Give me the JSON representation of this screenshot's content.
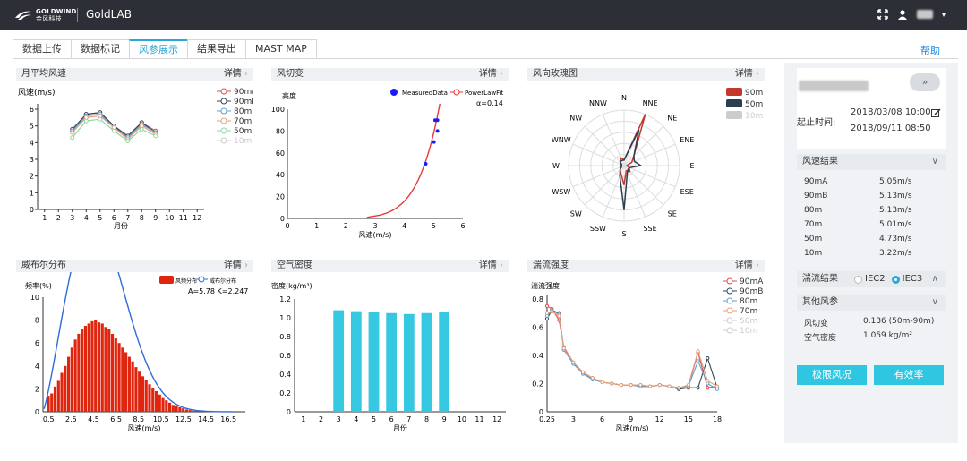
{
  "app": {
    "logo_text_en": "GOLDWIND",
    "logo_text_cn": "金风科技",
    "title": "GoldLAB"
  },
  "tabs": [
    "数据上传",
    "数据标记",
    "风参展示",
    "结果导出",
    "MAST MAP"
  ],
  "help": "帮助",
  "detail_label": "详情",
  "panels": {
    "monthly": {
      "title": "月平均风速",
      "ylabel": "风速(m/s)",
      "xlabel": "月份"
    },
    "shear": {
      "title": "风切变",
      "ylabel": "高度",
      "xlabel": "风速(m/s)",
      "legend_measured": "MeasuredData",
      "legend_fit": "PowerLawFit",
      "alpha": "α=0.14"
    },
    "rose": {
      "title": "风向玫瑰图"
    },
    "weibull": {
      "title": "威布尔分布",
      "ylabel": "频率(%)",
      "xlabel": "风速(m/s)",
      "legend_bar": "风频分布",
      "legend_line": "威布尔分布",
      "params": "A=5.78 K=2.247"
    },
    "density": {
      "title": "空气密度",
      "ylabel": "密度(kg/m³)",
      "xlabel": "月份"
    },
    "turbulence": {
      "title": "湍流强度",
      "ylabel": "湍流强度",
      "xlabel": "风速(m/s)"
    }
  },
  "chart_data": [
    {
      "type": "line",
      "title": "月平均风速",
      "ylabel": "风速(m/s)",
      "xlabel": "月份",
      "x": [
        1,
        2,
        3,
        4,
        5,
        6,
        7,
        8,
        9,
        10,
        11,
        12
      ],
      "ylim": [
        0,
        6
      ],
      "series": [
        {
          "name": "90mA",
          "color": "#d9534f",
          "x": [
            3,
            4,
            5,
            6,
            7,
            8,
            9
          ],
          "values": [
            4.7,
            5.7,
            5.8,
            5.0,
            4.3,
            5.2,
            4.7
          ]
        },
        {
          "name": "90mB",
          "color": "#34495e",
          "x": [
            3,
            4,
            5,
            6,
            7,
            8,
            9
          ],
          "values": [
            4.8,
            5.7,
            5.8,
            5.0,
            4.4,
            5.2,
            4.6
          ]
        },
        {
          "name": "80m",
          "color": "#5ba4cf",
          "x": [
            3,
            4,
            5,
            6,
            7,
            8,
            9
          ],
          "values": [
            4.7,
            5.6,
            5.7,
            4.9,
            4.3,
            5.1,
            4.6
          ]
        },
        {
          "name": "70m",
          "color": "#e8a07a",
          "x": [
            3,
            4,
            5,
            6,
            7,
            8,
            9
          ],
          "values": [
            4.6,
            5.5,
            5.6,
            4.9,
            4.2,
            5.0,
            4.5
          ]
        },
        {
          "name": "50m",
          "color": "#8ed6a8",
          "x": [
            3,
            4,
            5,
            6,
            7,
            8,
            9
          ],
          "values": [
            4.3,
            5.3,
            5.4,
            4.7,
            4.1,
            4.8,
            4.4
          ]
        },
        {
          "name": "10m",
          "color": "#cccccc",
          "x": [],
          "values": []
        }
      ]
    },
    {
      "type": "scatter",
      "title": "风切变",
      "xlabel": "风速(m/s)",
      "ylabel": "高度",
      "xlim": [
        0,
        6
      ],
      "ylim": [
        0,
        100
      ],
      "measured": [
        [
          4.73,
          50
        ],
        [
          5.01,
          70
        ],
        [
          5.13,
          80
        ],
        [
          5.13,
          90
        ],
        [
          5.05,
          90
        ]
      ],
      "fit_alpha": 0.14
    },
    {
      "type": "radar",
      "title": "风向玫瑰图",
      "directions": [
        "N",
        "NNE",
        "NE",
        "ENE",
        "E",
        "ESE",
        "SE",
        "SSE",
        "S",
        "SSW",
        "SW",
        "WSW",
        "W",
        "WNW",
        "NW",
        "NNW"
      ],
      "series": [
        {
          "name": "90m",
          "color": "#c0392b",
          "values": [
            2,
            20,
            5,
            3,
            1,
            2,
            3,
            2,
            7,
            3,
            2,
            1,
            1,
            1,
            2,
            3
          ]
        },
        {
          "name": "50m",
          "color": "#2c3e50",
          "values": [
            2,
            14,
            5,
            4,
            6,
            2,
            2,
            3,
            16,
            4,
            2,
            1,
            1,
            1,
            2,
            2
          ]
        },
        {
          "name": "10m",
          "color": "#cccccc",
          "values": []
        }
      ]
    },
    {
      "type": "bar",
      "title": "威布尔分布",
      "xlabel": "风速(m/s)",
      "ylabel": "频率(%)",
      "ylim": [
        0,
        10
      ],
      "x_ticks": [
        "0.5",
        "2.5",
        "4.5",
        "6.5",
        "8.5",
        "10.5",
        "12.5",
        "14.5",
        "16.5"
      ],
      "bin_width": 0.3,
      "bin_start": 0.5,
      "values": [
        1.4,
        1.6,
        2.2,
        2.7,
        3.4,
        4.0,
        4.8,
        5.6,
        6.3,
        6.8,
        7.2,
        7.5,
        7.7,
        7.9,
        8.0,
        7.8,
        7.7,
        7.4,
        7.2,
        6.8,
        6.4,
        6.0,
        5.6,
        5.2,
        4.8,
        4.4,
        3.9,
        3.5,
        3.1,
        2.8,
        2.4,
        2.1,
        1.8,
        1.5,
        1.2,
        1.0,
        0.8,
        0.6,
        0.5,
        0.4,
        0.3,
        0.2,
        0.15,
        0.1,
        0.08,
        0.05,
        0.03,
        0.02
      ],
      "weibull": {
        "A": 5.78,
        "K": 2.247
      }
    },
    {
      "type": "bar",
      "title": "空气密度",
      "xlabel": "月份",
      "ylabel": "密度(kg/m³)",
      "ylim": [
        0,
        1.2
      ],
      "categories": [
        "1",
        "2",
        "3",
        "4",
        "5",
        "6",
        "7",
        "8",
        "9",
        "10",
        "11",
        "12"
      ],
      "values": [
        null,
        null,
        1.08,
        1.07,
        1.06,
        1.05,
        1.04,
        1.05,
        1.06,
        null,
        null,
        null
      ],
      "color": "#36c8e0"
    },
    {
      "type": "line",
      "title": "湍流强度",
      "xlabel": "风速(m/s)",
      "ylabel": "湍流强度",
      "ylim": [
        0,
        0.8
      ],
      "xlim": [
        0,
        18
      ],
      "x_ticks": [
        "0.25",
        "3",
        "6",
        "9",
        "12",
        "15",
        "18"
      ],
      "series": [
        {
          "name": "90mA",
          "color": "#d9534f",
          "x": [
            0.25,
            0.75,
            1.5,
            2,
            3,
            4,
            5,
            6,
            7,
            8,
            9,
            10,
            11,
            12,
            13,
            14,
            15,
            16,
            17,
            18
          ],
          "values": [
            0.75,
            0.73,
            0.65,
            0.46,
            0.35,
            0.28,
            0.24,
            0.21,
            0.2,
            0.19,
            0.19,
            0.19,
            0.18,
            0.19,
            0.18,
            0.17,
            0.18,
            0.42,
            0.17,
            0.18
          ]
        },
        {
          "name": "90mB",
          "color": "#34495e",
          "x": [
            0.25,
            0.75,
            1.5,
            2,
            3,
            4,
            5,
            6,
            7,
            8,
            9,
            10,
            11,
            12,
            13,
            14,
            15,
            16,
            17,
            18
          ],
          "values": [
            0.66,
            0.72,
            0.7,
            0.44,
            0.34,
            0.27,
            0.23,
            0.21,
            0.2,
            0.19,
            0.19,
            0.18,
            0.18,
            0.19,
            0.18,
            0.16,
            0.17,
            0.17,
            0.38,
            0.17
          ]
        },
        {
          "name": "80m",
          "color": "#5ba4cf",
          "x": [
            0.25,
            0.75,
            1.5,
            2,
            3,
            4,
            5,
            6,
            7,
            8,
            9,
            10,
            11,
            12,
            13,
            14,
            15,
            16,
            17,
            18
          ],
          "values": [
            0.68,
            0.72,
            0.69,
            0.44,
            0.34,
            0.27,
            0.23,
            0.21,
            0.2,
            0.19,
            0.19,
            0.18,
            0.18,
            0.19,
            0.18,
            0.17,
            0.18,
            0.36,
            0.2,
            0.16
          ]
        },
        {
          "name": "70m",
          "color": "#e8a07a",
          "x": [
            0.25,
            0.75,
            1.5,
            2,
            3,
            4,
            5,
            6,
            7,
            8,
            9,
            10,
            11,
            12,
            13,
            14,
            15,
            16,
            17,
            18
          ],
          "values": [
            0.7,
            0.71,
            0.68,
            0.45,
            0.35,
            0.28,
            0.24,
            0.21,
            0.2,
            0.19,
            0.19,
            0.19,
            0.18,
            0.19,
            0.18,
            0.17,
            0.19,
            0.43,
            0.22,
            0.18
          ]
        },
        {
          "name": "50m",
          "color": "#cccccc",
          "x": [],
          "values": []
        },
        {
          "name": "10m",
          "color": "#cccccc",
          "x": [],
          "values": []
        }
      ]
    }
  ],
  "sidebar": {
    "date_label": "起止时间:",
    "date_start": "2018/03/08 10:00",
    "date_end": "2018/09/11 08:50",
    "wind_result_title": "风速结果",
    "wind_results": [
      [
        "90mA",
        "5.05m/s"
      ],
      [
        "90mB",
        "5.13m/s"
      ],
      [
        "80m",
        "5.13m/s"
      ],
      [
        "70m",
        "5.01m/s"
      ],
      [
        "50m",
        "4.73m/s"
      ],
      [
        "10m",
        "3.22m/s"
      ]
    ],
    "turb_title": "湍流结果",
    "iec2": "IEC2",
    "iec3": "IEC3",
    "other_title": "其他风参",
    "other": [
      [
        "风切变",
        "0.136 (50m-90m)"
      ],
      [
        "空气密度",
        "1.059 kg/m²"
      ]
    ],
    "btn_extreme": "极限风况",
    "btn_valid": "有效率"
  }
}
